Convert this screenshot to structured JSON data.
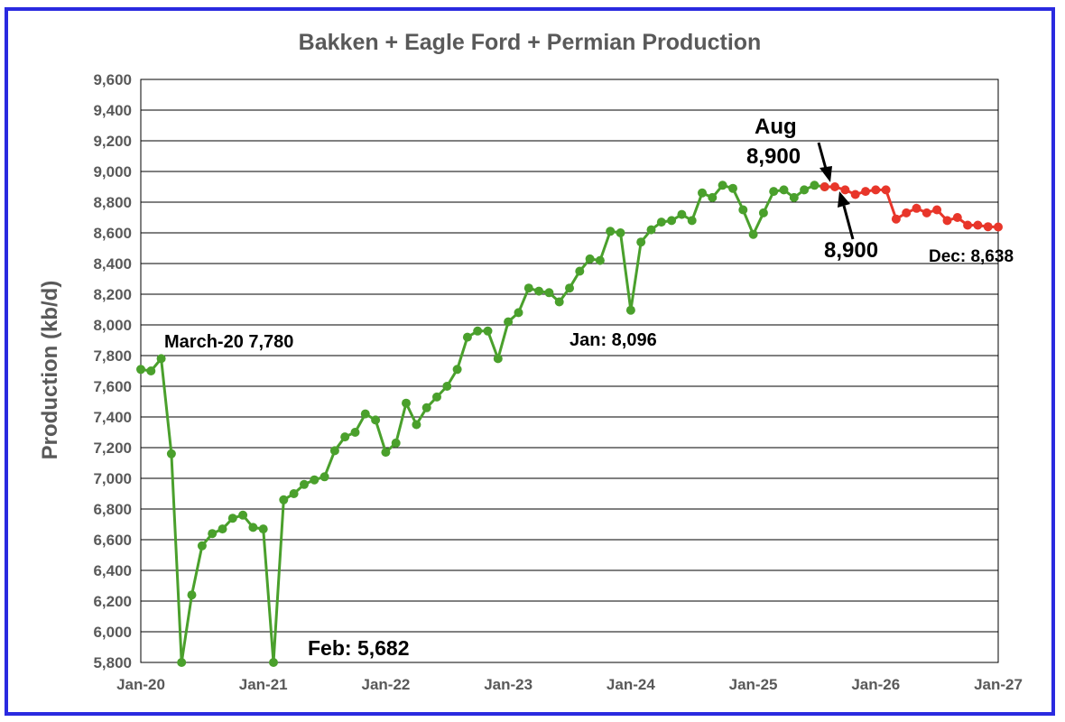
{
  "chart_data": {
    "type": "line",
    "title": "Bakken + Eagle Ford + Permian Production",
    "ylabel": "Production (kb/d)",
    "xlabel": "",
    "ylim": [
      5800,
      9600
    ],
    "ytick_values": [
      5800,
      6000,
      6200,
      6400,
      6600,
      6800,
      7000,
      7200,
      7400,
      7600,
      7800,
      8000,
      8200,
      8400,
      8600,
      8800,
      9000,
      9200,
      9400,
      9600
    ],
    "ytick_labels": [
      "5,800",
      "6,000",
      "6,200",
      "6,400",
      "6,600",
      "6,800",
      "7,000",
      "7,200",
      "7,400",
      "7,600",
      "7,800",
      "8,000",
      "8,200",
      "8,400",
      "8,600",
      "8,800",
      "9,000",
      "9,200",
      "9,400",
      "9,600"
    ],
    "xtick_labels": [
      "Jan-20",
      "Jan-21",
      "Jan-22",
      "Jan-23",
      "Jan-24",
      "Jan-25",
      "Jan-26",
      "Jan-27"
    ],
    "grid": true,
    "colors": {
      "actual": "#4aa02c",
      "forecast": "#e8362a",
      "frame": "#2a2ae0",
      "grid": "#000000",
      "text": "#595959"
    },
    "series": [
      {
        "start": "Jan-20",
        "values": [
          7710,
          7700,
          7780,
          7160,
          5682,
          6240,
          6560,
          6640,
          6670,
          6740,
          6760,
          6680,
          6670,
          5682,
          6860,
          6900,
          6960,
          6990,
          7010,
          7180,
          7270,
          7300,
          7420,
          7380,
          7170,
          7230,
          7490,
          7350,
          7460,
          7530,
          7600,
          7710,
          7920,
          7960,
          7960,
          7780,
          8020,
          8080,
          8240,
          8220,
          8210,
          8150,
          8240,
          8350,
          8430,
          8420,
          8610,
          8600,
          8096,
          8540,
          8620,
          8670,
          8680,
          8720,
          8680,
          8860,
          8830,
          8910,
          8890,
          8750,
          8590,
          8730,
          8870,
          8880,
          8830,
          8880,
          8910,
          8900
        ]
      },
      {
        "start": "Aug-25",
        "values": [
          8900,
          8900,
          8880,
          8850,
          8870,
          8880,
          8880,
          8690,
          8730,
          8760,
          8730,
          8750,
          8680,
          8700,
          8650,
          8650,
          8640,
          8638
        ]
      }
    ],
    "annotations": {
      "march": "March-20 7,780",
      "feb": "Feb: 5,682",
      "jan": "Jan: 8,096",
      "aug_month": "Aug",
      "aug_value": "8,900",
      "forecast_value": "8,900",
      "dec": "Dec: 8,638"
    }
  }
}
